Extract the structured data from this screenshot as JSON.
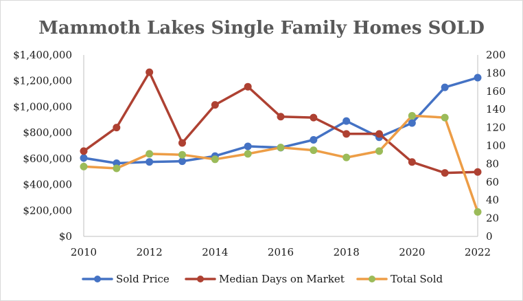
{
  "chart_data": {
    "type": "line",
    "title": "Mammoth Lakes Single Family Homes SOLD",
    "x": [
      2010,
      2011,
      2012,
      2013,
      2014,
      2015,
      2016,
      2017,
      2018,
      2019,
      2020,
      2021,
      2022
    ],
    "x_tick_labels": [
      "2010",
      "2012",
      "2014",
      "2016",
      "2018",
      "2020",
      "2022"
    ],
    "xlim": [
      2010,
      2022
    ],
    "y_left": {
      "ylim": [
        0,
        1400000
      ],
      "tick_labels": [
        "$0",
        "$200,000",
        "$400,000",
        "$600,000",
        "$800,000",
        "$1,000,000",
        "$1,200,000",
        "$1,400,000"
      ]
    },
    "y_right": {
      "ylim": [
        0,
        200
      ],
      "tick_labels": [
        "0",
        "20",
        "40",
        "60",
        "80",
        "100",
        "120",
        "140",
        "160",
        "180",
        "200"
      ]
    },
    "grid": false,
    "legend_position": "bottom",
    "series": [
      {
        "name": "Sold Price",
        "axis": "left",
        "color": "#4472c4",
        "values": [
          605000,
          565000,
          575000,
          580000,
          620000,
          695000,
          685000,
          745000,
          890000,
          765000,
          875000,
          1150000,
          1225000
        ]
      },
      {
        "name": "Median Days on Market",
        "axis": "right",
        "color": "#ae4132",
        "values": [
          94,
          120,
          181,
          103,
          145,
          165,
          132,
          131,
          113,
          113,
          82,
          70,
          71
        ]
      },
      {
        "name": "Total Sold",
        "axis": "right",
        "color": "#ed9d46",
        "marker_color": "#9bbb59",
        "values": [
          77,
          75,
          91,
          90,
          85,
          91,
          98,
          95,
          87,
          94,
          133,
          131,
          27
        ]
      }
    ]
  }
}
